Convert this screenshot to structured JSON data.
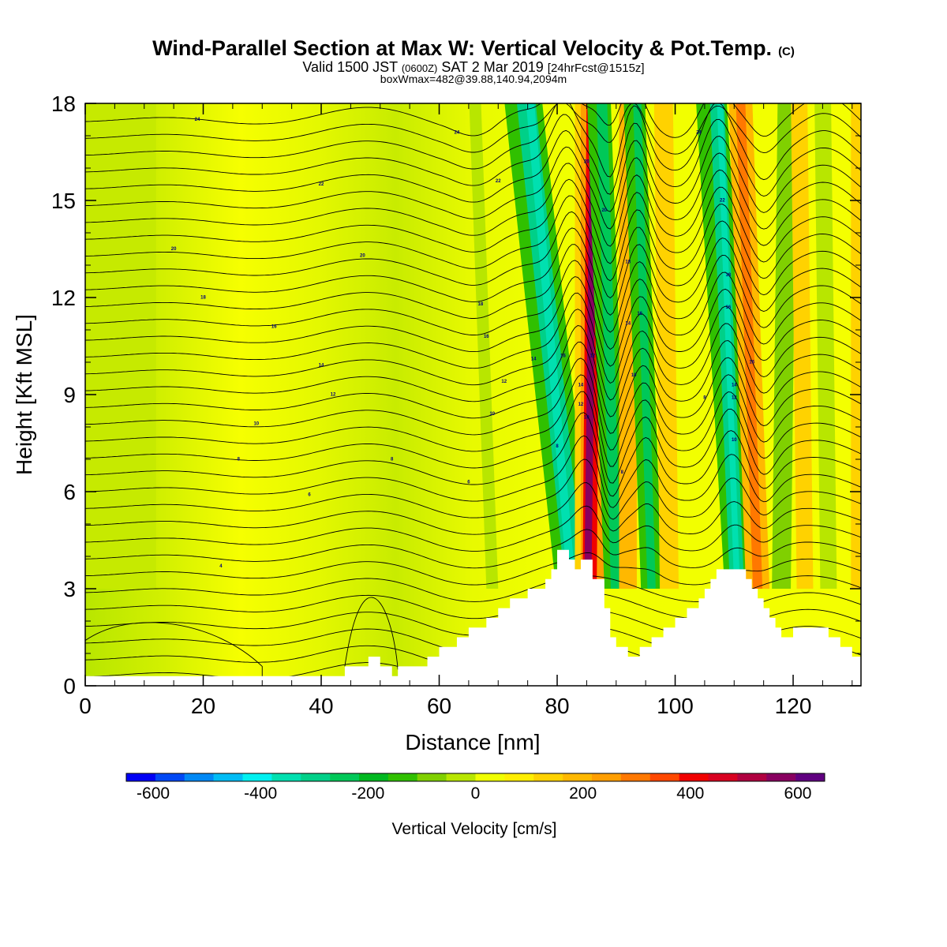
{
  "chart_data": {
    "type": "heatmap",
    "title": "Wind-Parallel Section at Max W: Vertical Velocity & Pot.Temp.",
    "title_mark": "(C)",
    "subtitle": {
      "valid_prefix": "Valid 1500 JST",
      "zulu": "(0600Z)",
      "date": "SAT 2 Mar 2019",
      "forecast": "[24hrFcst@1515z]"
    },
    "box_info": "boxWmax=482@39.88,140.94,2094m",
    "xlabel": "Distance [nm]",
    "ylabel": "Height [Kft MSL]",
    "xlim": [
      0,
      131.5
    ],
    "ylim": [
      0,
      18
    ],
    "x_ticks": [
      0,
      20,
      40,
      60,
      80,
      100,
      120
    ],
    "y_ticks": [
      0,
      3,
      6,
      9,
      12,
      15,
      18
    ],
    "colorbar": {
      "label": "Vertical Velocity [cm/s]",
      "min": -650,
      "max": 650,
      "step": 50,
      "tick_values": [
        -600,
        -400,
        -200,
        0,
        200,
        400,
        600
      ],
      "colors": [
        "#0000f5",
        "#0048f5",
        "#0088f5",
        "#00bcf5",
        "#00f0f0",
        "#00e0b0",
        "#00d088",
        "#00c858",
        "#00b820",
        "#30c000",
        "#80d000",
        "#b8e600",
        "#f0ff00",
        "#ffee00",
        "#ffd200",
        "#ffb800",
        "#ff9e00",
        "#ff7800",
        "#ff4800",
        "#f00000",
        "#d80020",
        "#b00040",
        "#880060",
        "#600080"
      ]
    },
    "terrain_profile": {
      "x": [
        0,
        44,
        44,
        48,
        48,
        50,
        50,
        52,
        52,
        53,
        53,
        58,
        58,
        60,
        60,
        63,
        63,
        65,
        65,
        68,
        68,
        70,
        70,
        72,
        72,
        75,
        75,
        78,
        78,
        79,
        79,
        80,
        80,
        82,
        82,
        83,
        83,
        84,
        84,
        86,
        86,
        88,
        88,
        89,
        89,
        90,
        90,
        92,
        92,
        94,
        94,
        96,
        96,
        98,
        98,
        100,
        100,
        102,
        102,
        104,
        104,
        105,
        105,
        106,
        106,
        107,
        107,
        108,
        108,
        112,
        112,
        113,
        113,
        114,
        114,
        115,
        115,
        116,
        116,
        117,
        117,
        118,
        118,
        120,
        120,
        126,
        126,
        128,
        128,
        130,
        130,
        131.5
      ],
      "height": [
        0.3,
        0.3,
        0.6,
        0.6,
        0.9,
        0.9,
        0.6,
        0.6,
        0.3,
        0.3,
        0.6,
        0.6,
        0.9,
        0.9,
        1.2,
        1.2,
        1.5,
        1.5,
        1.8,
        1.8,
        2.1,
        2.1,
        2.4,
        2.4,
        2.7,
        2.7,
        3.0,
        3.0,
        3.3,
        3.3,
        3.6,
        3.6,
        4.2,
        4.2,
        3.9,
        3.9,
        3.6,
        3.6,
        3.9,
        3.9,
        3.3,
        3.3,
        2.4,
        2.4,
        1.5,
        1.5,
        1.2,
        1.2,
        0.9,
        0.9,
        1.2,
        1.2,
        1.5,
        1.5,
        1.8,
        1.8,
        2.1,
        2.1,
        2.4,
        2.4,
        2.7,
        2.7,
        3.0,
        3.0,
        3.3,
        3.3,
        3.6,
        3.6,
        3.6,
        3.6,
        3.3,
        3.3,
        3.0,
        3.0,
        2.7,
        2.7,
        2.4,
        2.4,
        2.1,
        2.1,
        1.8,
        1.8,
        1.5,
        1.5,
        1.8,
        1.8,
        1.5,
        1.5,
        1.2,
        1.2,
        0.9,
        0.9
      ]
    },
    "contour_labels": [
      {
        "text": "24",
        "x": 19,
        "y": 17.5
      },
      {
        "text": "24",
        "x": 63,
        "y": 17.1
      },
      {
        "text": "24",
        "x": 104,
        "y": 17.1
      },
      {
        "text": "22",
        "x": 40,
        "y": 15.5
      },
      {
        "text": "22",
        "x": 70,
        "y": 15.6
      },
      {
        "text": "22",
        "x": 108,
        "y": 15.0
      },
      {
        "text": "20",
        "x": 15,
        "y": 13.5
      },
      {
        "text": "20",
        "x": 47,
        "y": 13.3
      },
      {
        "text": "20",
        "x": 85,
        "y": 16.2
      },
      {
        "text": "20",
        "x": 88,
        "y": 14.7
      },
      {
        "text": "18",
        "x": 20,
        "y": 12.0
      },
      {
        "text": "18",
        "x": 67,
        "y": 11.8
      },
      {
        "text": "18",
        "x": 92,
        "y": 13.1
      },
      {
        "text": "18",
        "x": 109,
        "y": 12.7
      },
      {
        "text": "16",
        "x": 32,
        "y": 11.1
      },
      {
        "text": "16",
        "x": 68,
        "y": 10.8
      },
      {
        "text": "16",
        "x": 81,
        "y": 10.2
      },
      {
        "text": "16",
        "x": 94,
        "y": 11.5
      },
      {
        "text": "16",
        "x": 109,
        "y": 11.7
      },
      {
        "text": "16",
        "x": 113,
        "y": 10.0
      },
      {
        "text": "14",
        "x": 40,
        "y": 9.9
      },
      {
        "text": "14",
        "x": 76,
        "y": 10.1
      },
      {
        "text": "14",
        "x": 84,
        "y": 9.3
      },
      {
        "text": "14",
        "x": 92,
        "y": 11.2
      },
      {
        "text": "14",
        "x": 110,
        "y": 9.3
      },
      {
        "text": "12",
        "x": 42,
        "y": 9.0
      },
      {
        "text": "12",
        "x": 71,
        "y": 9.4
      },
      {
        "text": "12",
        "x": 86,
        "y": 10.2
      },
      {
        "text": "12",
        "x": 84,
        "y": 8.7
      },
      {
        "text": "12",
        "x": 110,
        "y": 8.9
      },
      {
        "text": "10",
        "x": 29,
        "y": 8.1
      },
      {
        "text": "10",
        "x": 69,
        "y": 8.4
      },
      {
        "text": "10",
        "x": 85,
        "y": 8.3
      },
      {
        "text": "10",
        "x": 93,
        "y": 9.6
      },
      {
        "text": "10",
        "x": 110,
        "y": 7.6
      },
      {
        "text": "8",
        "x": 26,
        "y": 7.0
      },
      {
        "text": "8",
        "x": 52,
        "y": 7.0
      },
      {
        "text": "8",
        "x": 80,
        "y": 7.4
      },
      {
        "text": "8",
        "x": 91,
        "y": 6.6
      },
      {
        "text": "8",
        "x": 105,
        "y": 8.9
      },
      {
        "text": "6",
        "x": 38,
        "y": 5.9
      },
      {
        "text": "6",
        "x": 65,
        "y": 6.3
      },
      {
        "text": "4",
        "x": 23,
        "y": 3.7
      }
    ]
  }
}
